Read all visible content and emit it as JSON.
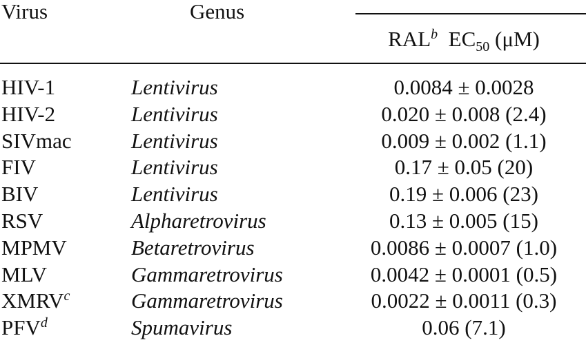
{
  "header": {
    "virus": "Virus",
    "genus": "Genus",
    "value": {
      "drug": "RAL",
      "drug_note": "b",
      "measure": "EC",
      "measure_sub": "50",
      "unit": "(μM)"
    }
  },
  "rows": [
    {
      "virus": "HIV-1",
      "genus": "Lentivirus",
      "value": "0.0084 ± 0.0028"
    },
    {
      "virus": "HIV-2",
      "genus": "Lentivirus",
      "value": "0.020 ± 0.008 (2.4)"
    },
    {
      "virus": "SIVmac",
      "genus": "Lentivirus",
      "value": "0.009 ± 0.002 (1.1)"
    },
    {
      "virus": "FIV",
      "genus": "Lentivirus",
      "value": "0.17 ± 0.05 (20)"
    },
    {
      "virus": "BIV",
      "genus": "Lentivirus",
      "value": "0.19 ± 0.006 (23)"
    },
    {
      "virus": "RSV",
      "genus": "Alpharetrovirus",
      "value": "0.13 ± 0.005 (15)"
    },
    {
      "virus": "MPMV",
      "genus": "Betaretrovirus",
      "value": "0.0086 ± 0.0007 (1.0)"
    },
    {
      "virus": "MLV",
      "genus": "Gammaretrovirus",
      "value": "0.0042 ± 0.0001 (0.5)"
    },
    {
      "virus": "XMRV",
      "virus_note": "c",
      "genus": "Gammaretrovirus",
      "value": "0.0022 ± 0.0011 (0.3)"
    },
    {
      "virus": "PFV",
      "virus_note": "d",
      "genus": "Spumavirus",
      "value": "0.06 (7.1)"
    }
  ]
}
